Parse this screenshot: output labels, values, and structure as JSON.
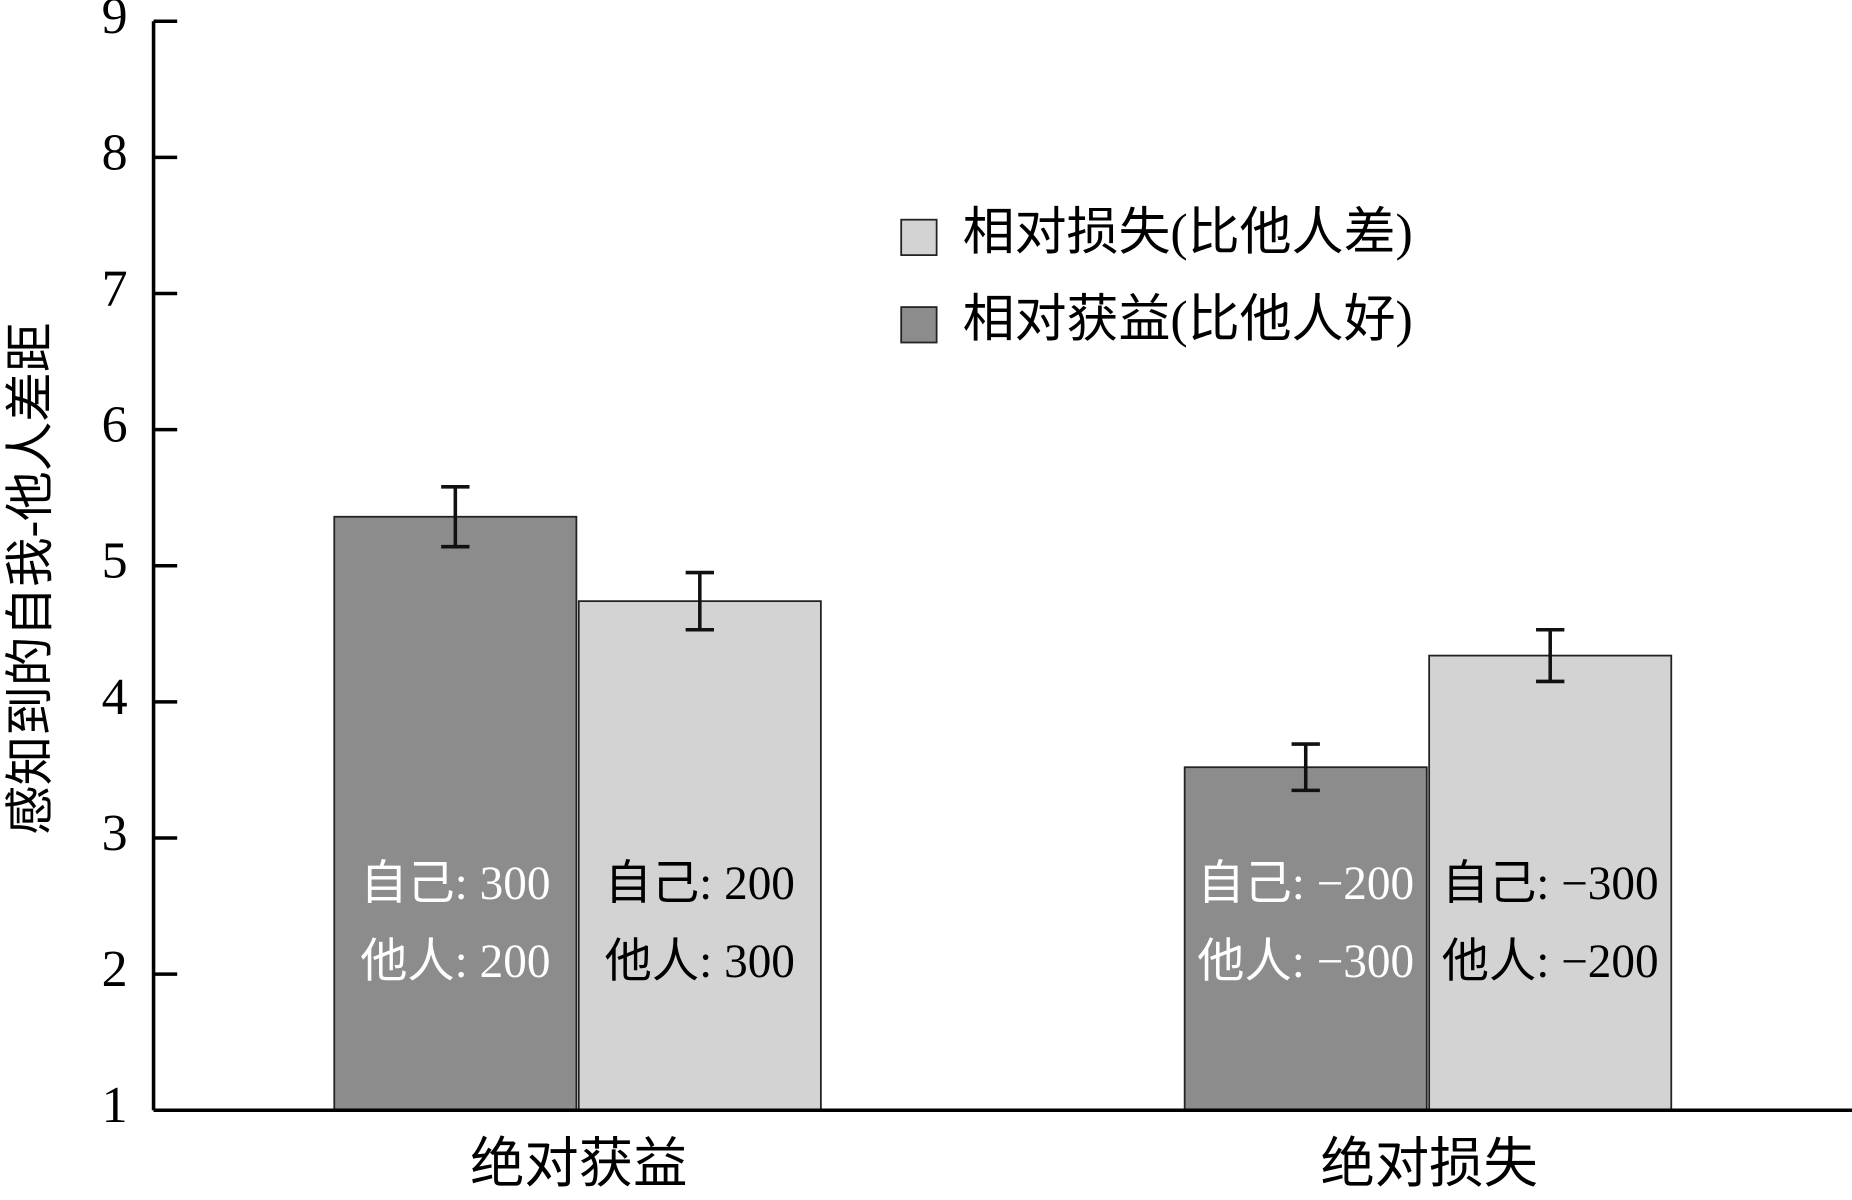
{
  "chart_data": {
    "type": "bar",
    "ylabel": "感知到的自我-他人差距",
    "categories": [
      "绝对获益",
      "绝对损失"
    ],
    "series": [
      {
        "name": "相对获益(比他人好)",
        "color": "#8c8c8c",
        "values": [
          5.36,
          3.52
        ],
        "errors": [
          0.22,
          0.17
        ],
        "annotations": [
          [
            "自己: 300",
            "他人: 200"
          ],
          [
            "自己: −200",
            "他人: −300"
          ]
        ]
      },
      {
        "name": "相对损失(比他人差)",
        "color": "#d3d3d3",
        "values": [
          4.74,
          4.34
        ],
        "errors": [
          0.21,
          0.19
        ],
        "annotations": [
          [
            "自己: 200",
            "他人: 300"
          ],
          [
            "自己: −300",
            "他人: −200"
          ]
        ]
      }
    ],
    "ylim": [
      1,
      9
    ],
    "yticks": [
      1,
      2,
      3,
      4,
      5,
      6,
      7,
      8,
      9
    ],
    "grid": false
  }
}
